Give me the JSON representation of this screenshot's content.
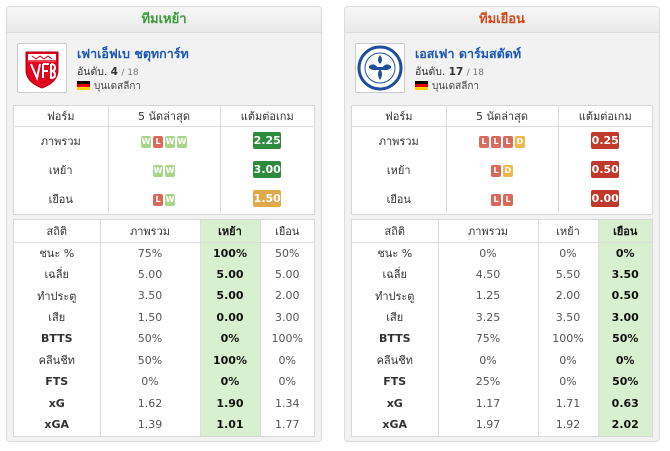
{
  "home": {
    "heading": "ทีมเหย้า",
    "team_name": "เฟาเอ็ฟเบ ชตุทการ์ท",
    "rank_label": "อันดับ.",
    "rank": "4",
    "rank_total": "/ 18",
    "league": "บุนเดสลีกา",
    "form_headers": [
      "ฟอร์ม",
      "5 นัดล่าสุด",
      "แต้มต่อเกม"
    ],
    "form_rows": [
      {
        "label": "ภาพรวม",
        "results": [
          "W",
          "L",
          "W",
          "W"
        ],
        "ppg": "2.25",
        "ppg_color": "#2e8b3e"
      },
      {
        "label": "เหย้า",
        "results": [
          "W",
          "W"
        ],
        "ppg": "3.00",
        "ppg_color": "#2e8b3e"
      },
      {
        "label": "เยือน",
        "results": [
          "L",
          "W"
        ],
        "ppg": "1.50",
        "ppg_color": "#e0aa4a"
      }
    ],
    "stats_headers": [
      "สถิติ",
      "ภาพรวม",
      "เหย้า",
      "เยือน"
    ],
    "stats_rows": [
      {
        "label": "ชนะ %",
        "v": [
          "75%",
          "100%",
          "50%"
        ]
      },
      {
        "label": "เฉลี่ย",
        "v": [
          "5.00",
          "5.00",
          "5.00"
        ]
      },
      {
        "label": "ทำประตู",
        "v": [
          "3.50",
          "5.00",
          "2.00"
        ]
      },
      {
        "label": "เสีย",
        "v": [
          "1.50",
          "0.00",
          "3.00"
        ]
      },
      {
        "label": "BTTS",
        "v": [
          "50%",
          "0%",
          "100%"
        ]
      },
      {
        "label": "คลีนชีท",
        "v": [
          "50%",
          "100%",
          "0%"
        ]
      },
      {
        "label": "FTS",
        "v": [
          "0%",
          "0%",
          "0%"
        ]
      },
      {
        "label": "xG",
        "v": [
          "1.62",
          "1.90",
          "1.34"
        ]
      },
      {
        "label": "xGA",
        "v": [
          "1.39",
          "1.01",
          "1.77"
        ]
      }
    ]
  },
  "away": {
    "heading": "ทีมเยือน",
    "team_name": "เอสเฟา ดาร์มสตัดท์",
    "rank_label": "อันดับ.",
    "rank": "17",
    "rank_total": "/ 18",
    "league": "บุนเดสลีกา",
    "form_headers": [
      "ฟอร์ม",
      "5 นัดล่าสุด",
      "แต้มต่อเกม"
    ],
    "form_rows": [
      {
        "label": "ภาพรวม",
        "results": [
          "L",
          "L",
          "L",
          "D"
        ],
        "ppg": "0.25",
        "ppg_color": "#c0392b"
      },
      {
        "label": "เหย้า",
        "results": [
          "L",
          "D"
        ],
        "ppg": "0.50",
        "ppg_color": "#c0392b"
      },
      {
        "label": "เยือน",
        "results": [
          "L",
          "L"
        ],
        "ppg": "0.00",
        "ppg_color": "#c0392b"
      }
    ],
    "stats_headers": [
      "สถิติ",
      "ภาพรวม",
      "เหย้า",
      "เยือน"
    ],
    "stats_rows": [
      {
        "label": "ชนะ %",
        "v": [
          "0%",
          "0%",
          "0%"
        ]
      },
      {
        "label": "เฉลี่ย",
        "v": [
          "4.50",
          "5.50",
          "3.50"
        ]
      },
      {
        "label": "ทำประตู",
        "v": [
          "1.25",
          "2.00",
          "0.50"
        ]
      },
      {
        "label": "เสีย",
        "v": [
          "3.25",
          "3.50",
          "3.00"
        ]
      },
      {
        "label": "BTTS",
        "v": [
          "75%",
          "100%",
          "50%"
        ]
      },
      {
        "label": "คลีนชีท",
        "v": [
          "0%",
          "0%",
          "0%"
        ]
      },
      {
        "label": "FTS",
        "v": [
          "25%",
          "0%",
          "50%"
        ]
      },
      {
        "label": "xG",
        "v": [
          "1.17",
          "1.71",
          "0.63"
        ]
      },
      {
        "label": "xGA",
        "v": [
          "1.97",
          "1.92",
          "2.02"
        ]
      }
    ]
  }
}
